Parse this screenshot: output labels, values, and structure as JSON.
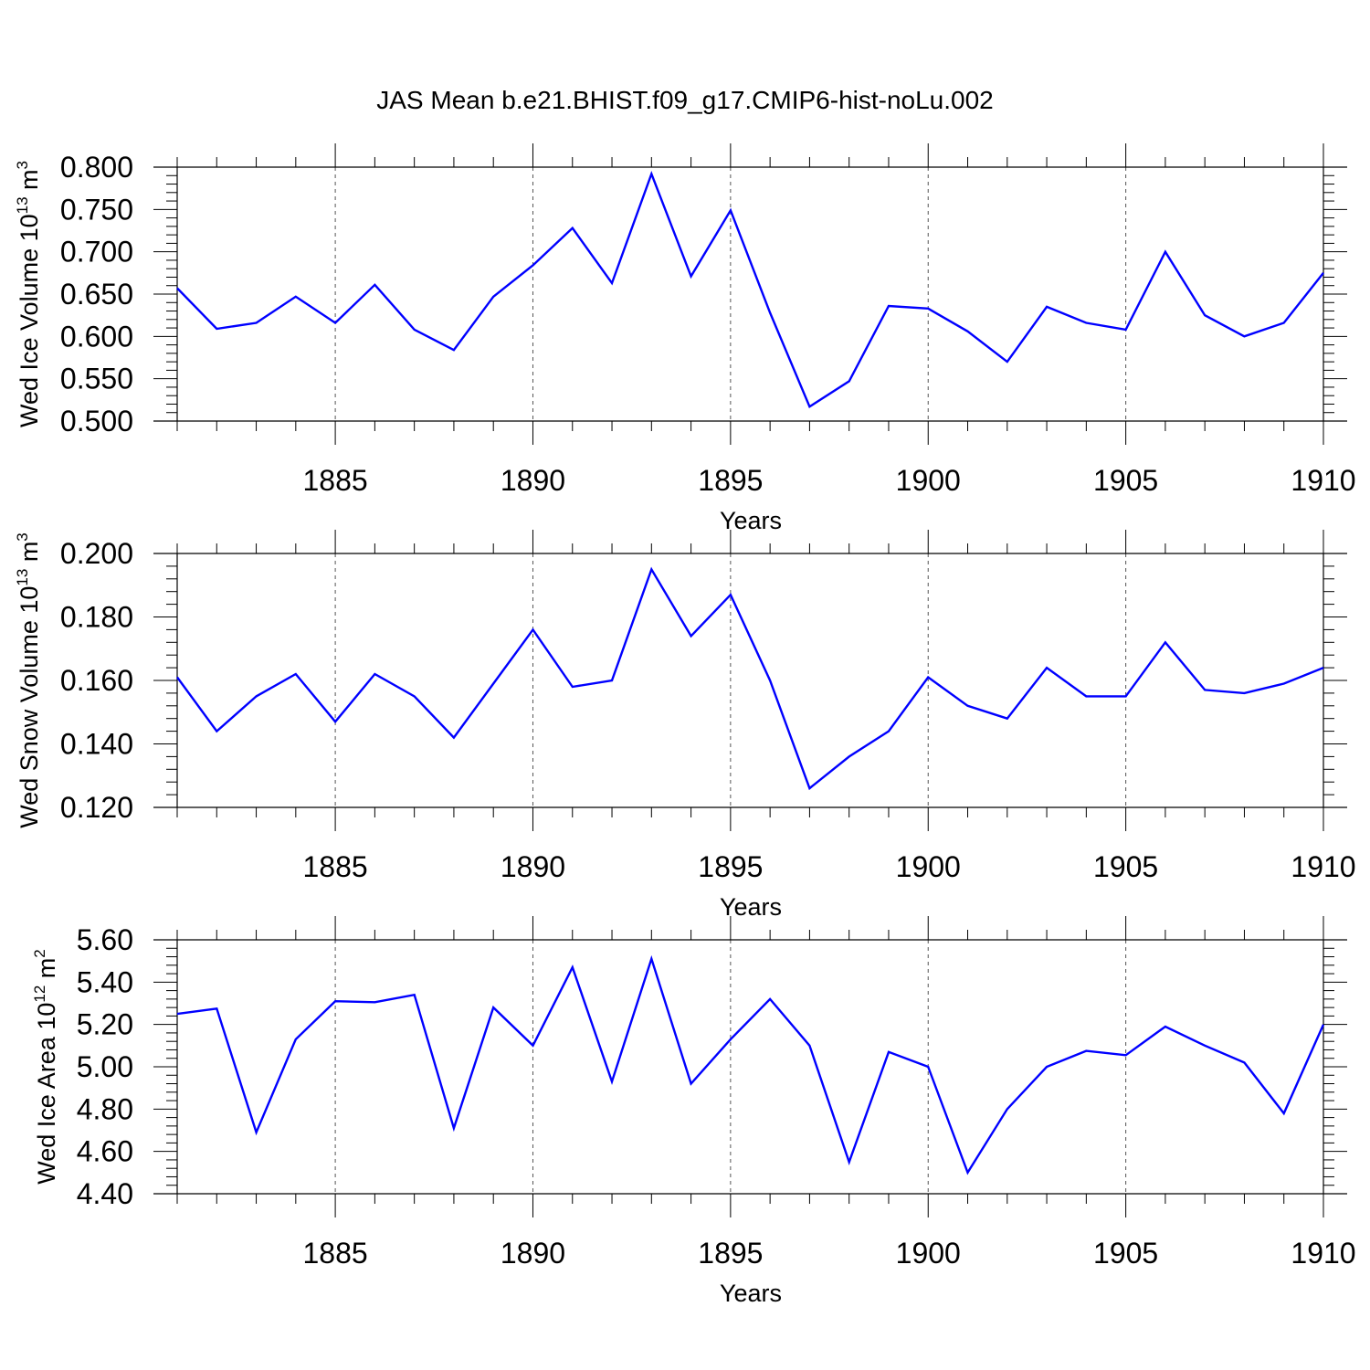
{
  "title": "JAS Mean b.e21.BHIST.f09_g17.CMIP6-hist-noLu.002",
  "line_color": "#0000ff",
  "chart_data": [
    {
      "type": "line",
      "ylabel_main": "Wed Ice Volume 10",
      "ylabel_exp": "13",
      "ylabel_unit": " m",
      "ylabel_unit_exp": "3",
      "xlabel": "Years",
      "xlim": [
        1881,
        1910
      ],
      "ylim": [
        0.5,
        0.8
      ],
      "yticks": [
        0.5,
        0.55,
        0.6,
        0.65,
        0.7,
        0.75,
        0.8
      ],
      "ytick_labels": [
        "0.500",
        "0.550",
        "0.600",
        "0.650",
        "0.700",
        "0.750",
        "0.800"
      ],
      "xticks": [
        1885,
        1890,
        1895,
        1900,
        1905,
        1910
      ],
      "xtick_labels": [
        "1885",
        "1890",
        "1895",
        "1900",
        "1905",
        "1910"
      ],
      "x": [
        1881,
        1882,
        1883,
        1884,
        1885,
        1886,
        1887,
        1888,
        1889,
        1890,
        1891,
        1892,
        1893,
        1894,
        1895,
        1896,
        1897,
        1898,
        1899,
        1900,
        1901,
        1902,
        1903,
        1904,
        1905,
        1906,
        1907,
        1908,
        1909,
        1910
      ],
      "values": [
        0.657,
        0.609,
        0.616,
        0.647,
        0.616,
        0.661,
        0.608,
        0.584,
        0.647,
        0.684,
        0.728,
        0.663,
        0.792,
        0.671,
        0.749,
        0.628,
        0.517,
        0.547,
        0.636,
        0.633,
        0.606,
        0.57,
        0.635,
        0.616,
        0.608,
        0.7,
        0.625,
        0.6,
        0.616,
        0.675
      ]
    },
    {
      "type": "line",
      "ylabel_main": "Wed Snow Volume 10",
      "ylabel_exp": "13",
      "ylabel_unit": " m",
      "ylabel_unit_exp": "3",
      "xlabel": "Years",
      "xlim": [
        1881,
        1910
      ],
      "ylim": [
        0.12,
        0.2
      ],
      "yticks": [
        0.12,
        0.14,
        0.16,
        0.18,
        0.2
      ],
      "ytick_labels": [
        "0.120",
        "0.140",
        "0.160",
        "0.180",
        "0.200"
      ],
      "xticks": [
        1885,
        1890,
        1895,
        1900,
        1905,
        1910
      ],
      "xtick_labels": [
        "1885",
        "1890",
        "1895",
        "1900",
        "1905",
        "1910"
      ],
      "x": [
        1881,
        1882,
        1883,
        1884,
        1885,
        1886,
        1887,
        1888,
        1889,
        1890,
        1891,
        1892,
        1893,
        1894,
        1895,
        1896,
        1897,
        1898,
        1899,
        1900,
        1901,
        1902,
        1903,
        1904,
        1905,
        1906,
        1907,
        1908,
        1909,
        1910
      ],
      "values": [
        0.161,
        0.144,
        0.155,
        0.162,
        0.147,
        0.162,
        0.155,
        0.142,
        0.159,
        0.176,
        0.158,
        0.16,
        0.195,
        0.174,
        0.187,
        0.16,
        0.126,
        0.136,
        0.144,
        0.161,
        0.152,
        0.148,
        0.164,
        0.155,
        0.155,
        0.172,
        0.157,
        0.156,
        0.159,
        0.164
      ]
    },
    {
      "type": "line",
      "ylabel_main": "Wed Ice Area 10",
      "ylabel_exp": "12",
      "ylabel_unit": " m",
      "ylabel_unit_exp": "2",
      "xlabel": "Years",
      "xlim": [
        1881,
        1910
      ],
      "ylim": [
        4.4,
        5.6
      ],
      "yticks": [
        4.4,
        4.6,
        4.8,
        5.0,
        5.2,
        5.4,
        5.6
      ],
      "ytick_labels": [
        "4.40",
        "4.60",
        "4.80",
        "5.00",
        "5.20",
        "5.40",
        "5.60"
      ],
      "xticks": [
        1885,
        1890,
        1895,
        1900,
        1905,
        1910
      ],
      "xtick_labels": [
        "1885",
        "1890",
        "1895",
        "1900",
        "1905",
        "1910"
      ],
      "x": [
        1881,
        1882,
        1883,
        1884,
        1885,
        1886,
        1887,
        1888,
        1889,
        1890,
        1891,
        1892,
        1893,
        1894,
        1895,
        1896,
        1897,
        1898,
        1899,
        1900,
        1901,
        1902,
        1903,
        1904,
        1905,
        1906,
        1907,
        1908,
        1909,
        1910
      ],
      "values": [
        5.25,
        5.275,
        4.69,
        5.13,
        5.31,
        5.305,
        5.34,
        4.71,
        5.28,
        5.1,
        5.47,
        4.93,
        5.51,
        4.92,
        5.13,
        5.32,
        5.1,
        4.55,
        5.07,
        5.0,
        4.5,
        4.8,
        5.0,
        5.075,
        5.055,
        5.19,
        5.1,
        5.02,
        4.78,
        5.2
      ]
    }
  ]
}
